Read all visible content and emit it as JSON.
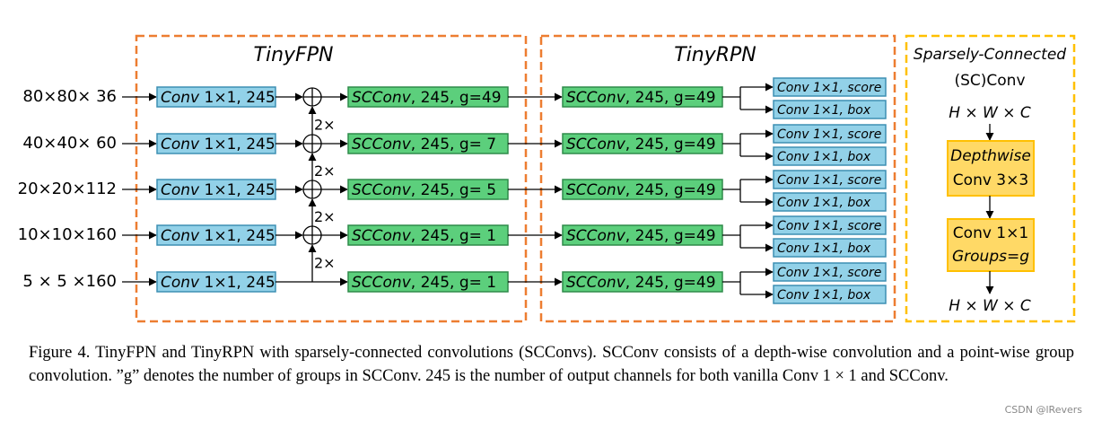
{
  "sections": {
    "fpn_title": "TinyFPN",
    "rpn_title": "TinyRPN",
    "sc_title_line1": "Sparsely-Connected",
    "sc_title_line2": "(SC)Conv"
  },
  "inputs": [
    "80×80× 36",
    "40×40× 60",
    "20×20×112",
    "10×10×160",
    "5 × 5 ×160"
  ],
  "fpn_convs": [
    {
      "name": "Conv",
      "args": " 1×1, 245"
    },
    {
      "name": "Conv",
      "args": " 1×1, 245"
    },
    {
      "name": "Conv",
      "args": " 1×1, 245"
    },
    {
      "name": "Conv",
      "args": " 1×1, 245"
    },
    {
      "name": "Conv",
      "args": " 1×1, 245"
    }
  ],
  "upsample_labels": [
    "2×",
    "2×",
    "2×",
    "2×"
  ],
  "fpn_scconvs": [
    {
      "name": "SCConv",
      "args": ", 245, g=49"
    },
    {
      "name": "SCConv",
      "args": ", 245, g= 7"
    },
    {
      "name": "SCConv",
      "args": ", 245, g= 5"
    },
    {
      "name": "SCConv",
      "args": ", 245, g= 1"
    },
    {
      "name": "SCConv",
      "args": ", 245, g= 1"
    }
  ],
  "rpn_scconvs": [
    {
      "name": "SCConv",
      "args": ", 245, g=49"
    },
    {
      "name": "SCConv",
      "args": ", 245, g=49"
    },
    {
      "name": "SCConv",
      "args": ", 245, g=49"
    },
    {
      "name": "SCConv",
      "args": ", 245, g=49"
    },
    {
      "name": "SCConv",
      "args": ", 245, g=49"
    }
  ],
  "heads": [
    {
      "score": "Conv 1×1, score",
      "box": "Conv 1×1, box"
    },
    {
      "score": "Conv 1×1, score",
      "box": "Conv 1×1, box"
    },
    {
      "score": "Conv 1×1, score",
      "box": "Conv 1×1, box"
    },
    {
      "score": "Conv 1×1, score",
      "box": "Conv 1×1, box"
    },
    {
      "score": "Conv 1×1, score",
      "box": "Conv 1×1, box"
    }
  ],
  "sc_detail": {
    "input": "H × W × C",
    "depthwise_line1": "Depthwise",
    "depthwise_line2": "Conv 3×3",
    "group_line1": "Conv 1×1",
    "group_line2": "Groups=g",
    "output": "H × W × C"
  },
  "caption": "Figure 4. TinyFPN and TinyRPN with sparsely-connected convolutions (SCConvs). SCConv consists of a depth-wise convolution and a point-wise group convolution. ”g” denotes the number of groups in SCConv. 245 is the number of output channels for both vanilla Conv 1 × 1 and SCConv.",
  "watermark": "CSDN @lRevers"
}
